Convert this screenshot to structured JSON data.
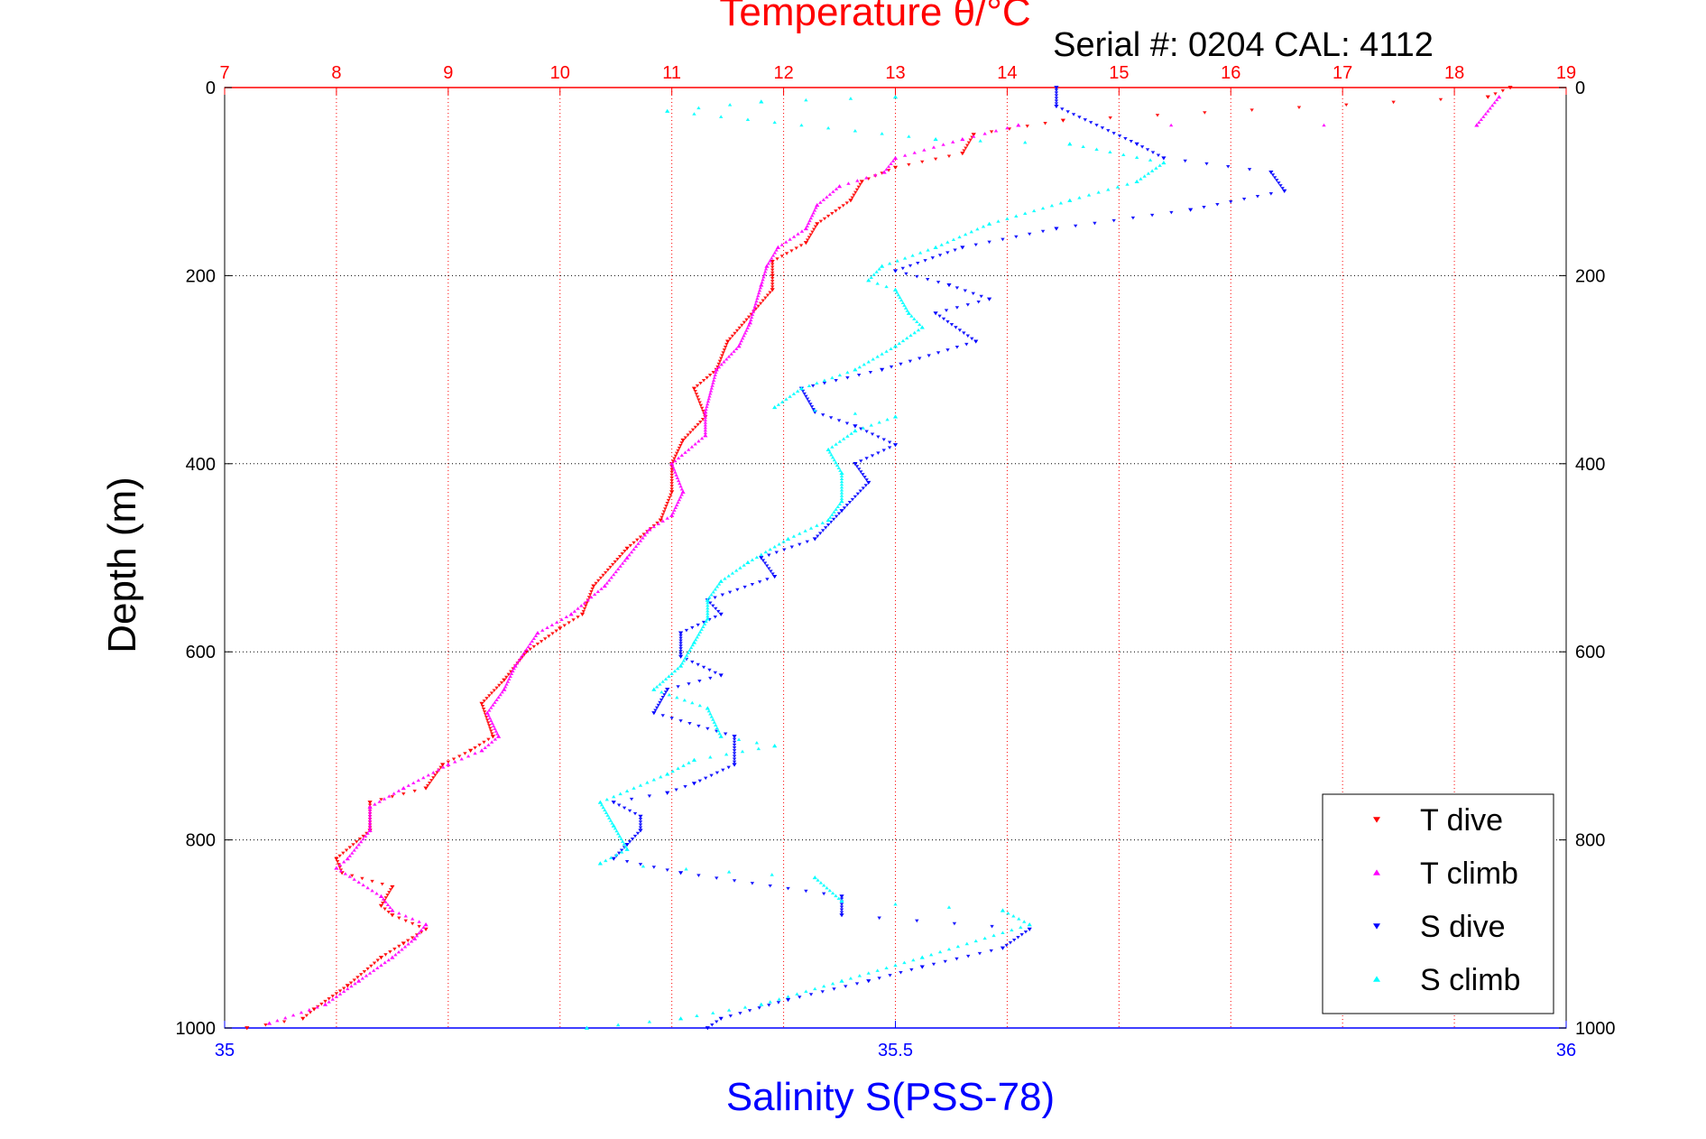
{
  "chart_data": {
    "type": "scatter",
    "title": "Temperature θ/°C",
    "subtitle": "Serial #: 0204  CAL: 4112",
    "ylabel": "Depth (m)",
    "xlabel_bottom": "Salinity S(PSS-78)",
    "x_top": {
      "label": "Temperature θ/°C",
      "range": [
        7,
        19
      ],
      "ticks": [
        "7",
        "8",
        "9",
        "10",
        "11",
        "12",
        "13",
        "14",
        "15",
        "16",
        "17",
        "18",
        "19"
      ]
    },
    "x_bottom": {
      "label": "Salinity S(PSS-78)",
      "range": [
        35,
        36
      ],
      "ticks": [
        "35",
        "35.5",
        "36"
      ]
    },
    "y": {
      "range": [
        0,
        1000
      ],
      "reversed": true,
      "ticks": [
        "0",
        "200",
        "400",
        "600",
        "800",
        "1000"
      ]
    },
    "grid": {
      "temperature_vertical": true,
      "depth_horizontal": true
    },
    "legend_position": "bottom-right",
    "colors": {
      "t_dive": "#ff0000",
      "t_climb": "#ff00ff",
      "s_dive": "#0000ff",
      "s_climb": "#00ffff",
      "top_axis": "#ff0000",
      "bottom_axis": "#0000ff",
      "depth_axis": "#000000"
    },
    "series": [
      {
        "name": "T dive",
        "axis": "temperature",
        "marker": "triangle-down",
        "color": "#ff0000",
        "points": [
          [
            18.5,
            0
          ],
          [
            18.3,
            10
          ],
          [
            14.5,
            35
          ],
          [
            13.7,
            50
          ],
          [
            13.6,
            70
          ],
          [
            13.0,
            85
          ],
          [
            12.7,
            100
          ],
          [
            12.6,
            120
          ],
          [
            12.3,
            145
          ],
          [
            12.2,
            165
          ],
          [
            11.9,
            185
          ],
          [
            11.9,
            200
          ],
          [
            11.9,
            215
          ],
          [
            11.5,
            270
          ],
          [
            11.4,
            300
          ],
          [
            11.2,
            320
          ],
          [
            11.3,
            350
          ],
          [
            11.1,
            375
          ],
          [
            11.0,
            400
          ],
          [
            11.0,
            430
          ],
          [
            10.9,
            460
          ],
          [
            10.6,
            490
          ],
          [
            10.3,
            530
          ],
          [
            10.2,
            560
          ],
          [
            10.0,
            575
          ],
          [
            9.7,
            600
          ],
          [
            9.5,
            630
          ],
          [
            9.3,
            655
          ],
          [
            9.4,
            690
          ],
          [
            9.2,
            705
          ],
          [
            8.95,
            720
          ],
          [
            8.8,
            745
          ],
          [
            8.3,
            760
          ],
          [
            8.3,
            790
          ],
          [
            8.0,
            820
          ],
          [
            8.05,
            835
          ],
          [
            8.5,
            850
          ],
          [
            8.4,
            870
          ],
          [
            8.5,
            880
          ],
          [
            8.8,
            895
          ],
          [
            8.6,
            910
          ],
          [
            8.4,
            925
          ],
          [
            8.1,
            955
          ],
          [
            7.8,
            980
          ],
          [
            7.7,
            990
          ],
          [
            7.2,
            1000
          ]
        ]
      },
      {
        "name": "T climb",
        "axis": "temperature",
        "marker": "triangle-up",
        "color": "#ff00ff",
        "points": [
          [
            18.4,
            10
          ],
          [
            18.2,
            40
          ],
          [
            14.1,
            40
          ],
          [
            13.6,
            55
          ],
          [
            13.0,
            75
          ],
          [
            12.9,
            90
          ],
          [
            12.5,
            105
          ],
          [
            12.3,
            125
          ],
          [
            12.2,
            150
          ],
          [
            11.95,
            170
          ],
          [
            11.85,
            190
          ],
          [
            11.8,
            210
          ],
          [
            11.7,
            250
          ],
          [
            11.6,
            275
          ],
          [
            11.4,
            300
          ],
          [
            11.3,
            345
          ],
          [
            11.3,
            370
          ],
          [
            11.0,
            400
          ],
          [
            11.1,
            430
          ],
          [
            11.0,
            455
          ],
          [
            10.8,
            470
          ],
          [
            10.6,
            500
          ],
          [
            10.4,
            530
          ],
          [
            10.1,
            560
          ],
          [
            9.8,
            580
          ],
          [
            9.6,
            615
          ],
          [
            9.5,
            640
          ],
          [
            9.35,
            665
          ],
          [
            9.45,
            690
          ],
          [
            9.3,
            705
          ],
          [
            9.0,
            720
          ],
          [
            8.6,
            745
          ],
          [
            8.3,
            765
          ],
          [
            8.3,
            790
          ],
          [
            8.1,
            820
          ],
          [
            8.0,
            830
          ],
          [
            8.4,
            860
          ],
          [
            8.5,
            875
          ],
          [
            8.8,
            890
          ],
          [
            8.7,
            905
          ],
          [
            8.5,
            925
          ],
          [
            8.2,
            950
          ],
          [
            7.9,
            975
          ],
          [
            7.4,
            995
          ]
        ]
      },
      {
        "name": "S dive",
        "axis": "salinity",
        "marker": "triangle-down",
        "color": "#0000ff",
        "points": [
          [
            35.62,
            0
          ],
          [
            35.62,
            20
          ],
          [
            35.68,
            60
          ],
          [
            35.7,
            75
          ],
          [
            35.78,
            90
          ],
          [
            35.79,
            110
          ],
          [
            35.72,
            130
          ],
          [
            35.62,
            150
          ],
          [
            35.55,
            170
          ],
          [
            35.5,
            195
          ],
          [
            35.54,
            210
          ],
          [
            35.57,
            225
          ],
          [
            35.53,
            240
          ],
          [
            35.56,
            270
          ],
          [
            35.49,
            300
          ],
          [
            35.43,
            320
          ],
          [
            35.44,
            345
          ],
          [
            35.47,
            360
          ],
          [
            35.5,
            380
          ],
          [
            35.47,
            400
          ],
          [
            35.48,
            420
          ],
          [
            35.46,
            450
          ],
          [
            35.44,
            480
          ],
          [
            35.4,
            500
          ],
          [
            35.41,
            520
          ],
          [
            35.36,
            545
          ],
          [
            35.37,
            560
          ],
          [
            35.34,
            580
          ],
          [
            35.34,
            605
          ],
          [
            35.37,
            625
          ],
          [
            35.33,
            640
          ],
          [
            35.32,
            665
          ],
          [
            35.38,
            690
          ],
          [
            35.38,
            720
          ],
          [
            35.35,
            740
          ],
          [
            35.33,
            750
          ],
          [
            35.29,
            760
          ],
          [
            35.31,
            775
          ],
          [
            35.31,
            790
          ],
          [
            35.3,
            805
          ],
          [
            35.29,
            820
          ],
          [
            35.34,
            835
          ],
          [
            35.46,
            860
          ],
          [
            35.46,
            880
          ],
          [
            35.6,
            895
          ],
          [
            35.58,
            915
          ],
          [
            35.52,
            935
          ],
          [
            35.48,
            950
          ],
          [
            35.42,
            970
          ],
          [
            35.37,
            990
          ],
          [
            35.36,
            1000
          ]
        ]
      },
      {
        "name": "S climb",
        "axis": "salinity",
        "marker": "triangle-up",
        "color": "#00ffff",
        "points": [
          [
            35.5,
            10
          ],
          [
            35.4,
            15
          ],
          [
            35.33,
            25
          ],
          [
            35.53,
            55
          ],
          [
            35.63,
            60
          ],
          [
            35.7,
            80
          ],
          [
            35.68,
            100
          ],
          [
            35.63,
            120
          ],
          [
            35.57,
            145
          ],
          [
            35.53,
            170
          ],
          [
            35.49,
            190
          ],
          [
            35.48,
            205
          ],
          [
            35.5,
            215
          ],
          [
            35.51,
            240
          ],
          [
            35.52,
            255
          ],
          [
            35.5,
            275
          ],
          [
            35.47,
            300
          ],
          [
            35.43,
            320
          ],
          [
            35.41,
            340
          ],
          [
            35.5,
            350
          ],
          [
            35.47,
            365
          ],
          [
            35.45,
            385
          ],
          [
            35.46,
            410
          ],
          [
            35.46,
            440
          ],
          [
            35.45,
            460
          ],
          [
            35.42,
            480
          ],
          [
            35.39,
            505
          ],
          [
            35.37,
            525
          ],
          [
            35.36,
            545
          ],
          [
            35.36,
            565
          ],
          [
            35.35,
            590
          ],
          [
            35.34,
            615
          ],
          [
            35.32,
            640
          ],
          [
            35.36,
            660
          ],
          [
            35.37,
            690
          ],
          [
            35.41,
            700
          ],
          [
            35.35,
            715
          ],
          [
            35.33,
            730
          ],
          [
            35.28,
            760
          ],
          [
            35.29,
            785
          ],
          [
            35.3,
            810
          ],
          [
            35.28,
            825
          ],
          [
            35.44,
            840
          ],
          [
            35.46,
            865
          ],
          [
            35.58,
            875
          ],
          [
            35.6,
            890
          ],
          [
            35.52,
            925
          ],
          [
            35.46,
            950
          ],
          [
            35.4,
            975
          ],
          [
            35.34,
            990
          ],
          [
            35.27,
            1000
          ]
        ]
      }
    ]
  }
}
